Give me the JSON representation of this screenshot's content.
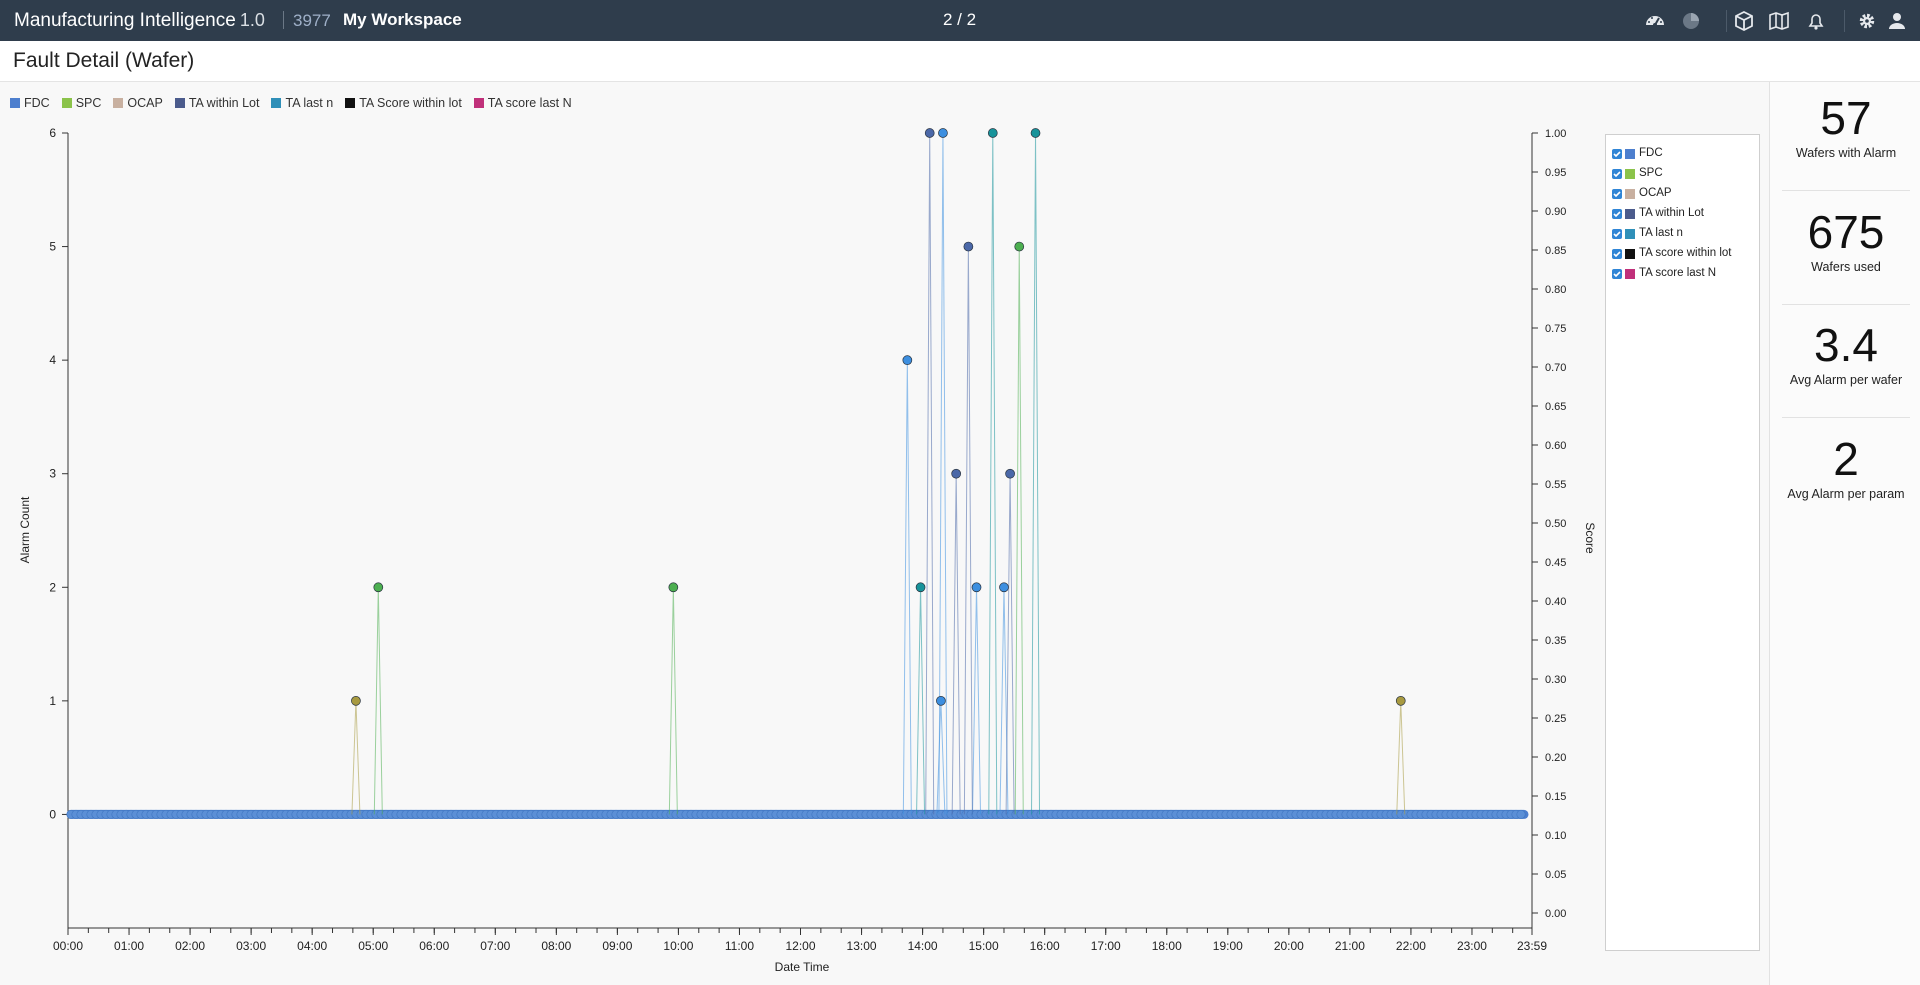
{
  "header": {
    "app_name": "Manufacturing Intelligence",
    "app_version": "1.0",
    "workspace_id": "3977",
    "workspace_name": "My Workspace",
    "pager": "2 / 2",
    "icons": [
      "dashboard-gauge-icon",
      "pie-chart-icon",
      "cube-icon",
      "map-icon",
      "bell-icon",
      "gear-icon",
      "user-icon"
    ]
  },
  "page": {
    "title": "Fault Detail (Wafer)"
  },
  "top_legend": [
    {
      "label": "FDC",
      "color": "#4d7fce"
    },
    {
      "label": "SPC",
      "color": "#8bc34a"
    },
    {
      "label": "OCAP",
      "color": "#c8b0a0"
    },
    {
      "label": "TA within Lot",
      "color": "#4b5b8c"
    },
    {
      "label": "TA last n",
      "color": "#2f8fb8"
    },
    {
      "label": "TA Score within lot",
      "color": "#111111"
    },
    {
      "label": "TA score last N",
      "color": "#c0307a"
    }
  ],
  "side_legend": [
    {
      "label": "FDC",
      "color": "#4d7fce",
      "checked": true
    },
    {
      "label": "SPC",
      "color": "#8bc34a",
      "checked": true
    },
    {
      "label": "OCAP",
      "color": "#c8b0a0",
      "checked": true
    },
    {
      "label": "TA within Lot",
      "color": "#4b5b8c",
      "checked": true
    },
    {
      "label": "TA last n",
      "color": "#2f8fb8",
      "checked": true
    },
    {
      "label": "TA score within lot",
      "color": "#111111",
      "checked": true
    },
    {
      "label": "TA score last N",
      "color": "#c0307a",
      "checked": true
    }
  ],
  "stats": [
    {
      "value": "57",
      "label": "Wafers with Alarm"
    },
    {
      "value": "675",
      "label": "Wafers used"
    },
    {
      "value": "3.4",
      "label": "Avg Alarm per wafer"
    },
    {
      "value": "2",
      "label": "Avg Alarm per param"
    }
  ],
  "chart_data": {
    "type": "line",
    "xlabel": "Date Time",
    "ylabel": "Alarm Count",
    "y2label": "Score",
    "x_ticks": [
      "00:00",
      "01:00",
      "02:00",
      "03:00",
      "04:00",
      "05:00",
      "06:00",
      "07:00",
      "08:00",
      "09:00",
      "10:00",
      "11:00",
      "12:00",
      "13:00",
      "14:00",
      "15:00",
      "16:00",
      "17:00",
      "18:00",
      "19:00",
      "20:00",
      "21:00",
      "22:00",
      "23:00",
      "23:59"
    ],
    "xlim": [
      "00:00",
      "23:59"
    ],
    "ylim": [
      -1,
      6
    ],
    "y_ticks": [
      0,
      1,
      2,
      3,
      4,
      5,
      6
    ],
    "y2lim": [
      0.0,
      1.0
    ],
    "y2_ticks": [
      "0.00",
      "0.05",
      "0.10",
      "0.15",
      "0.20",
      "0.25",
      "0.30",
      "0.35",
      "0.40",
      "0.45",
      "0.50",
      "0.55",
      "0.60",
      "0.65",
      "0.70",
      "0.75",
      "0.80",
      "0.85",
      "0.90",
      "0.95",
      "1.00"
    ],
    "baseline": {
      "series": "FDC",
      "value": 0,
      "color": "#4d7fce"
    },
    "series": [
      {
        "name": "FDC",
        "color": "#3d8fe0",
        "points": [
          {
            "x": "13:45",
            "y": 4
          },
          {
            "x": "14:20",
            "y": 6
          },
          {
            "x": "14:18",
            "y": 1
          },
          {
            "x": "14:53",
            "y": 2
          },
          {
            "x": "15:20",
            "y": 2
          }
        ]
      },
      {
        "name": "SPC",
        "color": "#4caf50",
        "points": [
          {
            "x": "05:05",
            "y": 2
          },
          {
            "x": "09:55",
            "y": 2
          },
          {
            "x": "15:35",
            "y": 5
          }
        ]
      },
      {
        "name": "OCAP",
        "color": "#a89a40",
        "points": [
          {
            "x": "04:43",
            "y": 1
          },
          {
            "x": "21:50",
            "y": 1
          }
        ]
      },
      {
        "name": "TA within Lot",
        "color": "#4b68a8",
        "points": [
          {
            "x": "14:07",
            "y": 6
          },
          {
            "x": "14:33",
            "y": 3
          },
          {
            "x": "14:45",
            "y": 5
          },
          {
            "x": "15:26",
            "y": 3
          }
        ]
      },
      {
        "name": "TA last n",
        "color": "#17939a",
        "points": [
          {
            "x": "13:58",
            "y": 2
          },
          {
            "x": "15:09",
            "y": 6
          },
          {
            "x": "15:51",
            "y": 6
          }
        ]
      }
    ],
    "grid": false
  }
}
